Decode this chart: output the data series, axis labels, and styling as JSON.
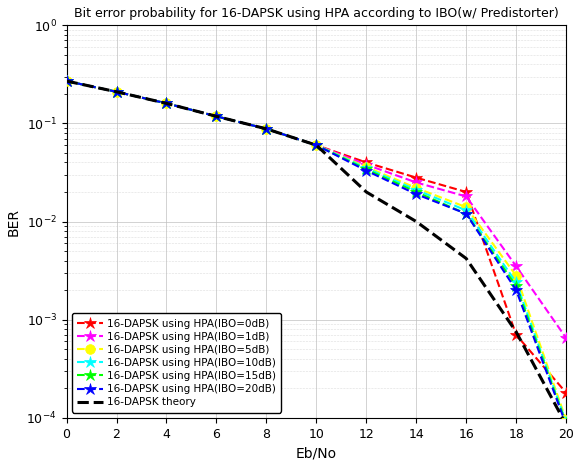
{
  "title": "Bit error probability for 16-DAPSK using HPA according to IBO(w/ Predistorter)",
  "xlabel": "Eb/No",
  "ylabel": "BER",
  "xlim": [
    0,
    20
  ],
  "background_color": "#ffffff",
  "grid_color": "#c0c0c0",
  "title_fontsize": 9.0,
  "axis_fontsize": 10,
  "tick_fontsize": 9,
  "legend_fontsize": 7.5,
  "eb_no": [
    0,
    2,
    4,
    6,
    8,
    10,
    12,
    14,
    16,
    18,
    20
  ],
  "series": [
    {
      "label": "16-DAPSK using HPA(IBO=0dB)",
      "color": "#ff0000",
      "marker": "*",
      "y": [
        0.27,
        0.21,
        0.16,
        0.118,
        0.088,
        0.06,
        0.04,
        0.028,
        0.02,
        0.0007,
        0.00018
      ]
    },
    {
      "label": "16-DAPSK using HPA(IBO=1dB)",
      "color": "#ff00ff",
      "marker": "*",
      "y": [
        0.27,
        0.21,
        0.16,
        0.118,
        0.088,
        0.06,
        0.038,
        0.025,
        0.018,
        0.0035,
        0.00065
      ]
    },
    {
      "label": "16-DAPSK using HPA(IBO=5dB)",
      "color": "#ffff00",
      "marker": "o",
      "y": [
        0.27,
        0.21,
        0.16,
        0.118,
        0.088,
        0.06,
        0.036,
        0.022,
        0.014,
        0.0028,
        9.5e-05
      ]
    },
    {
      "label": "16-DAPSK using HPA(IBO=10dB)",
      "color": "#00ffff",
      "marker": "*",
      "y": [
        0.27,
        0.21,
        0.16,
        0.118,
        0.088,
        0.06,
        0.035,
        0.021,
        0.013,
        0.0024,
        9e-05
      ]
    },
    {
      "label": "16-DAPSK using HPA(IBO=15dB)",
      "color": "#00ff00",
      "marker": "*",
      "y": [
        0.27,
        0.21,
        0.16,
        0.118,
        0.088,
        0.06,
        0.034,
        0.02,
        0.012,
        0.0022,
        8.8e-05
      ]
    },
    {
      "label": "16-DAPSK using HPA(IBO=20dB)",
      "color": "#0000ff",
      "marker": "*",
      "y": [
        0.27,
        0.21,
        0.16,
        0.118,
        0.088,
        0.06,
        0.033,
        0.019,
        0.012,
        0.002,
        8.5e-05
      ]
    },
    {
      "label": "16-DAPSK theory",
      "color": "#000000",
      "marker": null,
      "y": [
        0.27,
        0.21,
        0.16,
        0.118,
        0.088,
        0.06,
        0.02,
        0.01,
        0.0042,
        0.00075,
        8.5e-05
      ]
    }
  ]
}
